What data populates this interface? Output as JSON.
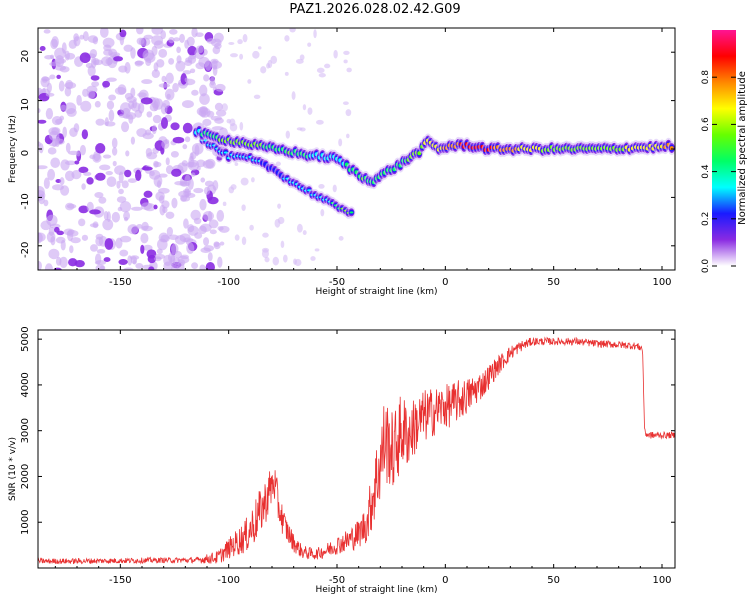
{
  "page": {
    "title": "PAZ1.2026.028.02.42.G09"
  },
  "chart_data": [
    {
      "type": "heatmap",
      "name": "spectrogram",
      "title": "PAZ1.2026.028.02.42.G09",
      "xlabel": "Height of straight line (km)",
      "ylabel": "Frequency (Hz)",
      "xlim": [
        -188,
        106
      ],
      "ylim": [
        -25,
        25
      ],
      "x_ticks": [
        -150,
        -100,
        -50,
        0,
        50,
        100
      ],
      "y_ticks": [
        -20,
        -10,
        0,
        10,
        20
      ],
      "colorbar": {
        "label": "Normalized spectral amplitude",
        "range": [
          0.0,
          1.0
        ],
        "ticks": [
          0.0,
          0.2,
          0.4,
          0.6,
          0.8
        ],
        "colors": [
          "#ffffff",
          "#8a2be2",
          "#1a1aff",
          "#00ffff",
          "#00ff66",
          "#66ff00",
          "#ffff00",
          "#ff8800",
          "#ff0000",
          "#ff1493"
        ]
      },
      "ridge": [
        {
          "x": -115,
          "y": 3.6,
          "a": 0.35
        },
        {
          "x": -108,
          "y": 2.6,
          "a": 0.45
        },
        {
          "x": -100,
          "y": 1.8,
          "a": 0.55
        },
        {
          "x": -92,
          "y": 1.2,
          "a": 0.55
        },
        {
          "x": -85,
          "y": 0.5,
          "a": 0.5
        },
        {
          "x": -78,
          "y": 0.0,
          "a": 0.45
        },
        {
          "x": -72,
          "y": -0.5,
          "a": 0.5
        },
        {
          "x": -65,
          "y": -1.2,
          "a": 0.4
        },
        {
          "x": -58,
          "y": -1.5,
          "a": 0.35
        },
        {
          "x": -50,
          "y": -2.0,
          "a": 0.3
        },
        {
          "x": -44,
          "y": -4.0,
          "a": 0.45
        },
        {
          "x": -38,
          "y": -6.0,
          "a": 0.5
        },
        {
          "x": -33,
          "y": -6.5,
          "a": 0.45
        },
        {
          "x": -28,
          "y": -5.0,
          "a": 0.4
        },
        {
          "x": -22,
          "y": -3.5,
          "a": 0.45
        },
        {
          "x": -17,
          "y": -2.0,
          "a": 0.5
        },
        {
          "x": -12,
          "y": -0.5,
          "a": 0.55
        },
        {
          "x": -8,
          "y": 1.5,
          "a": 0.7
        },
        {
          "x": -3,
          "y": 0.0,
          "a": 0.7
        },
        {
          "x": 2,
          "y": 0.6,
          "a": 0.75
        },
        {
          "x": 10,
          "y": 0.8,
          "a": 0.9
        },
        {
          "x": 20,
          "y": 0.0,
          "a": 0.85
        },
        {
          "x": 30,
          "y": 0.0,
          "a": 0.75
        },
        {
          "x": 45,
          "y": 0.0,
          "a": 0.6
        },
        {
          "x": 60,
          "y": 0.0,
          "a": 0.55
        },
        {
          "x": 75,
          "y": 0.0,
          "a": 0.55
        },
        {
          "x": 88,
          "y": 0.3,
          "a": 0.65
        },
        {
          "x": 100,
          "y": 0.4,
          "a": 0.7
        },
        {
          "x": 106,
          "y": 0.6,
          "a": 0.8
        }
      ],
      "secondary_branch": [
        {
          "x": -112,
          "y": 2.0,
          "a": 0.3
        },
        {
          "x": -100,
          "y": -1.5,
          "a": 0.35
        },
        {
          "x": -90,
          "y": -2.0,
          "a": 0.3
        },
        {
          "x": -80,
          "y": -4.0,
          "a": 0.25
        },
        {
          "x": -70,
          "y": -7.0,
          "a": 0.3
        },
        {
          "x": -60,
          "y": -9.5,
          "a": 0.3
        },
        {
          "x": -52,
          "y": -11.5,
          "a": 0.4
        },
        {
          "x": -46,
          "y": -12.5,
          "a": 0.55
        },
        {
          "x": -42,
          "y": -13.5,
          "a": 0.4
        }
      ]
    },
    {
      "type": "line",
      "name": "snr",
      "title": "",
      "xlabel": "Height of straight line (km)",
      "ylabel": "SNR (10 * v/v)",
      "xlim": [
        -188,
        106
      ],
      "ylim": [
        0,
        5200
      ],
      "x_ticks": [
        -150,
        -100,
        -50,
        0,
        50,
        100
      ],
      "y_ticks": [
        1000,
        2000,
        3000,
        4000,
        5000
      ],
      "series": [
        {
          "name": "SNR",
          "color": "#e83030",
          "x": [
            -188,
            -170,
            -150,
            -130,
            -115,
            -105,
            -98,
            -92,
            -88,
            -84,
            -81,
            -79,
            -77,
            -74,
            -70,
            -66,
            -60,
            -55,
            -50,
            -45,
            -40,
            -36,
            -33,
            -30,
            -28,
            -26,
            -24,
            -22,
            -20,
            -17,
            -14,
            -10,
            -6,
            -2,
            2,
            6,
            10,
            14,
            18,
            22,
            26,
            30,
            35,
            40,
            50,
            60,
            70,
            80,
            88,
            91,
            92,
            94,
            100,
            106
          ],
          "y": [
            150,
            150,
            160,
            170,
            170,
            230,
            500,
            700,
            1000,
            1350,
            1700,
            1900,
            1350,
            900,
            550,
            350,
            300,
            380,
            500,
            600,
            750,
            1000,
            1700,
            2300,
            2800,
            2700,
            2500,
            2800,
            3000,
            2900,
            3100,
            3300,
            3400,
            3500,
            3550,
            3650,
            3750,
            3900,
            4050,
            4300,
            4500,
            4700,
            4850,
            4950,
            4950,
            4950,
            4900,
            4880,
            4850,
            4800,
            2950,
            2900,
            2900,
            2900
          ],
          "noise": [
            60,
            60,
            60,
            60,
            60,
            150,
            260,
            380,
            500,
            500,
            480,
            450,
            400,
            300,
            200,
            150,
            120,
            160,
            200,
            260,
            320,
            450,
            800,
            900,
            1000,
            900,
            850,
            900,
            850,
            700,
            650,
            600,
            550,
            500,
            480,
            460,
            400,
            350,
            300,
            250,
            200,
            160,
            120,
            90,
            80,
            80,
            80,
            80,
            80,
            80,
            80,
            80,
            70,
            70
          ]
        }
      ]
    }
  ]
}
